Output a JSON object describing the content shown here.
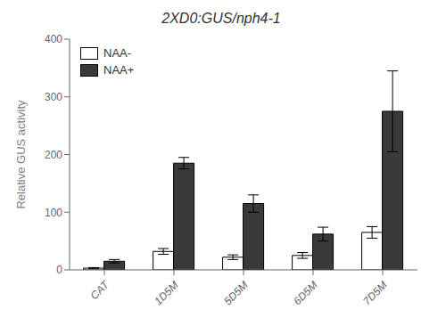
{
  "chart_data": {
    "type": "bar",
    "title": "2XD0:GUS/nph4-1",
    "ylabel": "Relative GUS activity",
    "categories": [
      "CAT",
      "1D5M",
      "5D5M",
      "6D5M",
      "7D5M"
    ],
    "series": [
      {
        "name": "NAA-",
        "color": "#ffffff",
        "values": [
          3,
          32,
          22,
          25,
          65
        ],
        "errors": [
          1,
          5,
          4,
          5,
          10
        ]
      },
      {
        "name": "NAA+",
        "color": "#3a3a3a",
        "values": [
          15,
          185,
          115,
          62,
          275
        ],
        "errors": [
          3,
          10,
          15,
          12,
          70
        ]
      }
    ],
    "ylim": [
      0,
      400
    ],
    "yticks": [
      0,
      100,
      200,
      300,
      400
    ],
    "grid": false,
    "legend": "upper left"
  }
}
